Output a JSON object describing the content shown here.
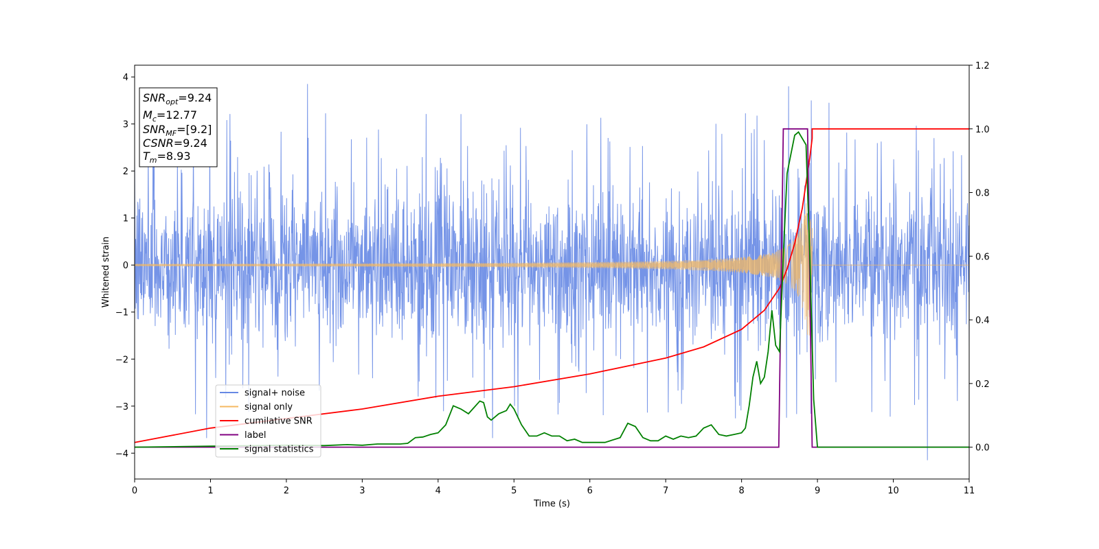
{
  "chart_data": {
    "type": "line",
    "xlabel": "Time (s)",
    "ylabel": "Whitened strain",
    "xlim": [
      0,
      11
    ],
    "ylim": [
      -4.55,
      4.25
    ],
    "y2lim": [
      -0.1,
      1.2
    ],
    "x_ticks": [
      "0",
      "1",
      "2",
      "3",
      "4",
      "5",
      "6",
      "7",
      "8",
      "9",
      "10",
      "11"
    ],
    "y_ticks": [
      "−4",
      "−3",
      "−2",
      "−1",
      "0",
      "1",
      "2",
      "3",
      "4"
    ],
    "y2_ticks": [
      "0.0",
      "0.2",
      "0.4",
      "0.6",
      "0.8",
      "1.0",
      "1.2"
    ],
    "grid": false,
    "legend_position": "lower-left",
    "colors": {
      "signal_noise": "#6688e4",
      "signal_only": "#f5b961",
      "cumulative_snr": "#ff0000",
      "label": "#800080",
      "signal_statistics": "#008000"
    },
    "series": [
      {
        "name": "signal+ noise",
        "axis": "left",
        "description_kind": "noise",
        "sigma": 1.0,
        "noise_envelope_bottom": -2.45,
        "noise_envelope_top": 2.3,
        "peaks": [
          {
            "x": 2.28,
            "y": 3.85
          },
          {
            "x": 8.62,
            "y": 3.8
          },
          {
            "x": 8.92,
            "y": 3.5
          },
          {
            "x": 9.15,
            "y": 3.45
          },
          {
            "x": 10.45,
            "y": -4.15
          },
          {
            "x": 4.72,
            "y": -3.68
          },
          {
            "x": 0.95,
            "y": -3.68
          }
        ]
      },
      {
        "name": "signal only",
        "axis": "left",
        "description_kind": "chirp",
        "start": 0,
        "merger": 8.93,
        "amplitude_start": 0.05,
        "amplitude_peak": 1.5
      },
      {
        "name": "cumilative SNR",
        "axis": "right",
        "x": [
          0,
          1,
          2,
          3,
          4,
          5,
          6,
          7,
          7.5,
          8,
          8.3,
          8.5,
          8.6,
          8.7,
          8.8,
          8.9,
          8.93,
          8.93,
          11
        ],
        "y": [
          0.015,
          0.06,
          0.09,
          0.12,
          0.16,
          0.19,
          0.23,
          0.28,
          0.315,
          0.37,
          0.43,
          0.5,
          0.56,
          0.64,
          0.75,
          0.91,
          0.97,
          1.0,
          1.0
        ]
      },
      {
        "name": "label",
        "axis": "right",
        "x": [
          0,
          8.49,
          8.55,
          8.87,
          8.93,
          11
        ],
        "y": [
          0,
          0,
          1,
          1,
          0,
          0
        ]
      },
      {
        "name": "signal statistics",
        "axis": "right",
        "x": [
          0,
          1,
          2,
          2.5,
          2.8,
          3,
          3.2,
          3.5,
          3.6,
          3.7,
          3.8,
          3.9,
          4.0,
          4.1,
          4.2,
          4.3,
          4.4,
          4.55,
          4.6,
          4.65,
          4.7,
          4.8,
          4.9,
          4.95,
          5.0,
          5.1,
          5.2,
          5.3,
          5.4,
          5.5,
          5.6,
          5.7,
          5.8,
          5.9,
          6.0,
          6.1,
          6.2,
          6.4,
          6.5,
          6.6,
          6.7,
          6.8,
          6.9,
          7.0,
          7.1,
          7.2,
          7.3,
          7.4,
          7.5,
          7.6,
          7.7,
          7.8,
          7.9,
          8.0,
          8.05,
          8.1,
          8.15,
          8.2,
          8.25,
          8.3,
          8.35,
          8.4,
          8.45,
          8.5,
          8.55,
          8.6,
          8.65,
          8.7,
          8.75,
          8.8,
          8.85,
          8.9,
          8.95,
          9.0,
          9.5,
          10,
          11
        ],
        "y": [
          0,
          0.003,
          0.006,
          0.005,
          0.008,
          0.006,
          0.01,
          0.01,
          0.012,
          0.03,
          0.032,
          0.04,
          0.045,
          0.07,
          0.13,
          0.12,
          0.105,
          0.145,
          0.14,
          0.095,
          0.085,
          0.105,
          0.115,
          0.135,
          0.12,
          0.07,
          0.035,
          0.035,
          0.045,
          0.035,
          0.035,
          0.02,
          0.025,
          0.015,
          0.015,
          0.015,
          0.015,
          0.03,
          0.075,
          0.065,
          0.03,
          0.02,
          0.02,
          0.035,
          0.025,
          0.035,
          0.03,
          0.035,
          0.06,
          0.07,
          0.04,
          0.035,
          0.04,
          0.045,
          0.06,
          0.13,
          0.22,
          0.27,
          0.2,
          0.22,
          0.3,
          0.43,
          0.32,
          0.3,
          0.6,
          0.86,
          0.92,
          0.98,
          0.99,
          0.97,
          0.95,
          0.6,
          0.15,
          0.0,
          0.0,
          0.0,
          0.0
        ]
      }
    ],
    "annotations": [
      {
        "base": "SNR",
        "sub": "opt",
        "value": "=9.24"
      },
      {
        "base": "M",
        "sub": "c",
        "value": "=12.77"
      },
      {
        "base": "SNR",
        "sub": "MF",
        "value": "=[9.2]"
      },
      {
        "base": "CSNR",
        "sub": "",
        "value": "=9.24"
      },
      {
        "base": "T",
        "sub": "m",
        "value": "=8.93"
      }
    ]
  },
  "legend": [
    {
      "label": "signal+ noise",
      "color": "#6688e4"
    },
    {
      "label": "signal only",
      "color": "#f5b961"
    },
    {
      "label": "cumilative SNR",
      "color": "#ff0000"
    },
    {
      "label": "label",
      "color": "#800080"
    },
    {
      "label": "signal statistics",
      "color": "#008000"
    }
  ]
}
